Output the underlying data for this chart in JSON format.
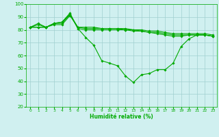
{
  "background_color": "#d0f0f0",
  "grid_color": "#a0d0d0",
  "line_color": "#00aa00",
  "marker_color": "#00aa00",
  "xlabel": "Humidité relative (%)",
  "xlabel_color": "#00aa00",
  "tick_color": "#00aa00",
  "ylim": [
    20,
    100
  ],
  "xlim": [
    -0.5,
    23.5
  ],
  "yticks": [
    20,
    30,
    40,
    50,
    60,
    70,
    80,
    90,
    100
  ],
  "xticks": [
    0,
    1,
    2,
    3,
    4,
    5,
    6,
    7,
    8,
    9,
    10,
    11,
    12,
    13,
    14,
    15,
    16,
    17,
    18,
    19,
    20,
    21,
    22,
    23
  ],
  "series": [
    [
      82,
      85,
      82,
      85,
      86,
      93,
      81,
      74,
      68,
      56,
      54,
      52,
      44,
      39,
      45,
      46,
      49,
      49,
      54,
      67,
      73,
      76,
      76,
      75
    ],
    [
      82,
      84,
      82,
      85,
      86,
      92,
      81,
      80,
      80,
      80,
      80,
      80,
      80,
      79,
      79,
      78,
      77,
      76,
      75,
      75,
      76,
      76,
      76,
      75
    ],
    [
      82,
      82,
      82,
      85,
      85,
      92,
      82,
      81,
      81,
      81,
      81,
      81,
      80,
      80,
      79,
      78,
      78,
      77,
      76,
      76,
      76,
      76,
      76,
      75
    ],
    [
      82,
      82,
      82,
      84,
      84,
      91,
      82,
      82,
      82,
      81,
      81,
      81,
      81,
      80,
      80,
      79,
      79,
      78,
      77,
      77,
      77,
      77,
      77,
      76
    ]
  ]
}
